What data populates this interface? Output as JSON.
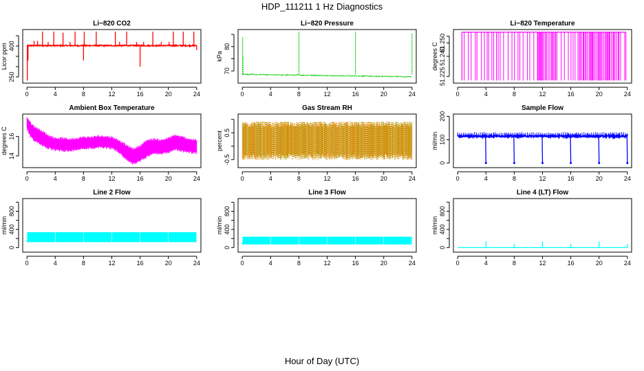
{
  "figure": {
    "title": "HDP_111211  1 Hz Diagnostics",
    "xlabel": "Hour of Day (UTC)"
  },
  "chart_data": [
    {
      "id": "co2",
      "type": "line",
      "title": "Li−820 CO2",
      "xlabel": "",
      "ylabel": "Licor ppm",
      "color": "#ff0000",
      "xlim": [
        -0.6,
        24.6
      ],
      "ylim": [
        220,
        480
      ],
      "x_ticks": [
        0,
        4,
        8,
        12,
        16,
        20,
        24
      ],
      "y_ticks": [
        250,
        300,
        350,
        400,
        450
      ],
      "y_tick_labels": [
        "250",
        "",
        "",
        "400",
        ""
      ],
      "baseline": 402,
      "noise": 3,
      "spikes": [
        {
          "x": 0.05,
          "y": 232
        },
        {
          "x": 0.15,
          "y": 330
        },
        {
          "x": 1.0,
          "y": 425
        },
        {
          "x": 1.5,
          "y": 425
        },
        {
          "x": 2.2,
          "y": 470
        },
        {
          "x": 3.0,
          "y": 420
        },
        {
          "x": 3.8,
          "y": 470
        },
        {
          "x": 5.1,
          "y": 465
        },
        {
          "x": 6.1,
          "y": 420
        },
        {
          "x": 6.8,
          "y": 470
        },
        {
          "x": 8.0,
          "y": 330
        },
        {
          "x": 8.1,
          "y": 470
        },
        {
          "x": 9.8,
          "y": 470
        },
        {
          "x": 12.5,
          "y": 470
        },
        {
          "x": 13.1,
          "y": 420
        },
        {
          "x": 14.1,
          "y": 470
        },
        {
          "x": 15.5,
          "y": 420
        },
        {
          "x": 16.0,
          "y": 300
        },
        {
          "x": 16.5,
          "y": 420
        },
        {
          "x": 17.8,
          "y": 470
        },
        {
          "x": 19.0,
          "y": 420
        },
        {
          "x": 20.1,
          "y": 420
        },
        {
          "x": 20.7,
          "y": 470
        },
        {
          "x": 22.1,
          "y": 470
        },
        {
          "x": 23.6,
          "y": 470
        },
        {
          "x": 24.0,
          "y": 380
        }
      ]
    },
    {
      "id": "pressure",
      "type": "line",
      "title": "Li−820 Pressure",
      "xlabel": "",
      "ylabel": "kPa",
      "color": "#00cc00",
      "xlim": [
        -0.6,
        24.6
      ],
      "ylim": [
        65,
        87
      ],
      "x_ticks": [
        0,
        4,
        8,
        12,
        16,
        20,
        24
      ],
      "y_ticks": [
        70,
        75,
        80,
        85
      ],
      "y_tick_labels": [
        "70",
        "",
        "80",
        ""
      ],
      "baseline_start": 68.6,
      "baseline_end": 67.6,
      "noise": 0.15,
      "spikes": [
        {
          "x": 0.05,
          "y": 84.0
        },
        {
          "x": 0.1,
          "y": 76.0
        },
        {
          "x": 8.0,
          "y": 86.0
        },
        {
          "x": 16.0,
          "y": 86.0
        },
        {
          "x": 24.0,
          "y": 85.5
        }
      ]
    },
    {
      "id": "temperature",
      "type": "line",
      "title": "Li−820 Temperature",
      "xlabel": "",
      "ylabel": "degrees C",
      "color": "#ff00ff",
      "xlim": [
        -0.6,
        24.6
      ],
      "ylim": [
        51.22,
        51.26
      ],
      "x_ticks": [
        0,
        4,
        8,
        12,
        16,
        20,
        24
      ],
      "y_ticks": [
        51.225,
        51.24,
        51.25,
        51.255
      ],
      "y_tick_labels": [
        "51.225",
        "51.240",
        "51.250",
        ""
      ],
      "high_level": 51.258,
      "low_level": 51.222,
      "start_x": 0.6,
      "end_x": 23.8
    },
    {
      "id": "ambient",
      "type": "line",
      "title": "Ambient Box Temperature",
      "xlabel": "",
      "ylabel": "degrees C",
      "color": "#ff00ff",
      "xlim": [
        -0.6,
        24.6
      ],
      "ylim": [
        12.8,
        18.3
      ],
      "x_ticks": [
        0,
        4,
        8,
        12,
        16,
        20,
        24
      ],
      "y_ticks": [
        14,
        16
      ],
      "y_tick_labels": [
        "14",
        "16"
      ],
      "envelope_x": [
        0,
        0.5,
        1,
        2,
        3,
        4,
        5,
        6,
        7,
        8,
        9,
        10,
        11,
        12,
        13,
        14,
        15,
        16,
        17,
        18,
        19,
        20,
        21,
        22,
        23,
        24
      ],
      "envelope_upper": [
        17.9,
        17.3,
        16.9,
        16.5,
        16.0,
        15.7,
        15.7,
        15.6,
        15.7,
        15.8,
        15.8,
        15.9,
        15.9,
        15.8,
        15.5,
        15.0,
        14.6,
        14.9,
        15.5,
        15.6,
        15.5,
        15.7,
        16.0,
        15.8,
        15.6,
        15.5
      ],
      "envelope_lower": [
        16.9,
        16.1,
        15.7,
        15.3,
        14.9,
        14.7,
        14.7,
        14.6,
        14.8,
        14.9,
        14.9,
        15.0,
        15.0,
        14.9,
        14.5,
        13.8,
        13.3,
        13.6,
        14.1,
        14.4,
        14.3,
        14.5,
        14.8,
        14.6,
        14.5,
        14.4
      ]
    },
    {
      "id": "rh",
      "type": "line",
      "title": "Gas Stream RH",
      "xlabel": "",
      "ylabel": "percent",
      "color": "#ff8000",
      "color2": "#999900",
      "xlim": [
        -0.6,
        24.6
      ],
      "ylim": [
        -0.8,
        1.2
      ],
      "x_ticks": [
        0,
        4,
        8,
        12,
        16,
        20,
        24
      ],
      "y_ticks": [
        -0.5,
        0.0,
        0.5,
        1.0
      ],
      "y_tick_labels": [
        "-0.5",
        "",
        "0.5",
        ""
      ],
      "upper_mean": 0.75,
      "lower_mean": -0.35,
      "noise": 0.12
    },
    {
      "id": "sample_flow",
      "type": "line",
      "title": "Sample Flow",
      "xlabel": "",
      "ylabel": "ml/min",
      "color": "#0000ff",
      "xlim": [
        -0.6,
        24.6
      ],
      "ylim": [
        -20,
        210
      ],
      "x_ticks": [
        0,
        4,
        8,
        12,
        16,
        20,
        24
      ],
      "y_ticks": [
        0,
        100,
        200
      ],
      "y_tick_labels": [
        "0",
        "100",
        "200"
      ],
      "baseline": 115,
      "upper": 130,
      "dips": [
        4,
        8,
        12,
        16,
        20,
        24
      ],
      "dip_value": 0
    },
    {
      "id": "line2",
      "type": "line",
      "title": "Line 2 Flow",
      "xlabel": "",
      "ylabel": "ml/min",
      "color": "#00ffff",
      "xlim": [
        -0.6,
        24.6
      ],
      "ylim": [
        -100,
        1080
      ],
      "x_ticks": [
        0,
        4,
        8,
        12,
        16,
        20,
        24
      ],
      "y_ticks": [
        0,
        200,
        400,
        600,
        800,
        1000
      ],
      "y_tick_labels": [
        "0",
        "",
        "400",
        "",
        "800",
        ""
      ],
      "band_low": 120,
      "band_high": 340,
      "gaps": [
        4,
        8,
        12,
        16,
        20,
        24
      ]
    },
    {
      "id": "line3",
      "type": "line",
      "title": "Line 3 Flow",
      "xlabel": "",
      "ylabel": "ml/min",
      "color": "#00ffff",
      "xlim": [
        -0.6,
        24.6
      ],
      "ylim": [
        -100,
        1080
      ],
      "x_ticks": [
        0,
        4,
        8,
        12,
        16,
        20,
        24
      ],
      "y_ticks": [
        0,
        200,
        400,
        600,
        800,
        1000
      ],
      "y_tick_labels": [
        "0",
        "",
        "400",
        "",
        "800",
        ""
      ],
      "band_low": 70,
      "band_high": 240,
      "gaps": [
        4,
        8,
        12,
        16,
        20,
        24
      ]
    },
    {
      "id": "line4",
      "type": "line",
      "title": "Line 4 (LT) Flow",
      "xlabel": "",
      "ylabel": "ml/min",
      "color": "#00ffff",
      "xlim": [
        -0.6,
        24.6
      ],
      "ylim": [
        -100,
        1080
      ],
      "x_ticks": [
        0,
        4,
        8,
        12,
        16,
        20,
        24
      ],
      "y_ticks": [
        0,
        200,
        400,
        600,
        800,
        1000
      ],
      "y_tick_labels": [
        "0",
        "",
        "400",
        "",
        "800",
        ""
      ],
      "baseline": 0,
      "spikes": [
        {
          "x": 4,
          "y": 140
        },
        {
          "x": 8,
          "y": 80
        },
        {
          "x": 12,
          "y": 130
        },
        {
          "x": 16,
          "y": 80
        },
        {
          "x": 20,
          "y": 130
        },
        {
          "x": 24,
          "y": 80
        }
      ]
    }
  ]
}
